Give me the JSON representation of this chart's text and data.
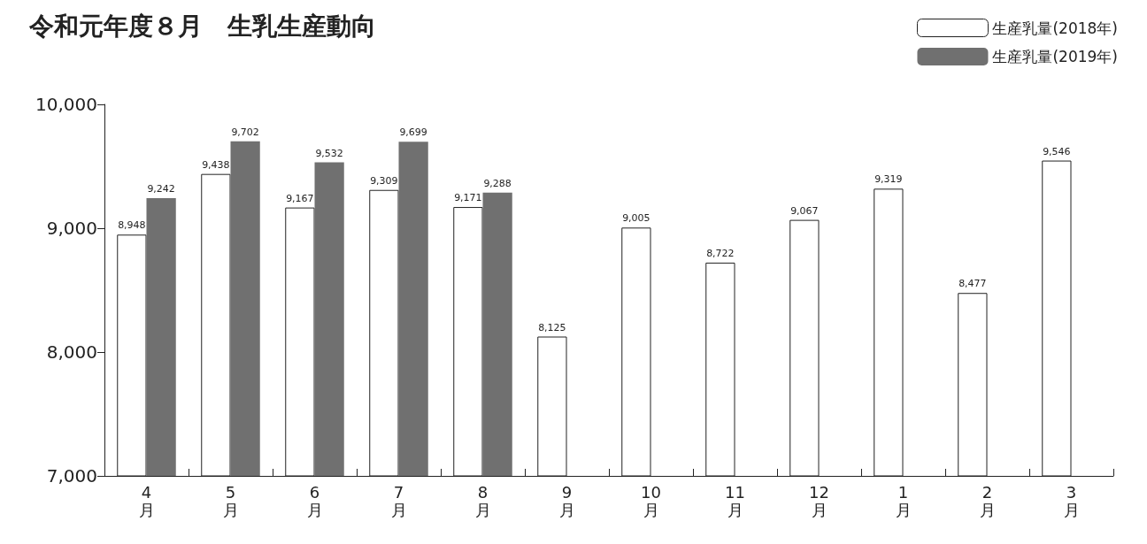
{
  "chart_data": {
    "type": "bar",
    "title": "令和元年度８月　生乳生産動向",
    "categories": [
      "4月",
      "5月",
      "6月",
      "7月",
      "8月",
      "9月",
      "10月",
      "11月",
      "12月",
      "1月",
      "2月",
      "3月"
    ],
    "series": [
      {
        "name": "生産乳量(2018年)",
        "color": "#ffffff",
        "values": [
          8948,
          9438,
          9167,
          9309,
          9171,
          8125,
          9005,
          8722,
          9067,
          9319,
          8477,
          9546
        ],
        "value_labels": [
          "8,948",
          "9,438",
          "9,167",
          "9,309",
          "9,171",
          "8,125",
          "9,005",
          "8,722",
          "9,067",
          "9,319",
          "8,477",
          "9,546"
        ]
      },
      {
        "name": "生産乳量(2019年)",
        "color": "#707070",
        "values": [
          9242,
          9702,
          9532,
          9699,
          9288,
          null,
          null,
          null,
          null,
          null,
          null,
          null
        ],
        "value_labels": [
          "9,242",
          "9,702",
          "9,532",
          "9,699",
          "9,288",
          null,
          null,
          null,
          null,
          null,
          null,
          null
        ]
      }
    ],
    "ylim": [
      7000,
      10000
    ],
    "yticks": [
      {
        "value": 7000,
        "label": "7,000"
      },
      {
        "value": 8000,
        "label": "8,000"
      },
      {
        "value": 9000,
        "label": "9,000"
      },
      {
        "value": 10000,
        "label": "10,000"
      }
    ],
    "grid": false,
    "legend": "top right"
  }
}
